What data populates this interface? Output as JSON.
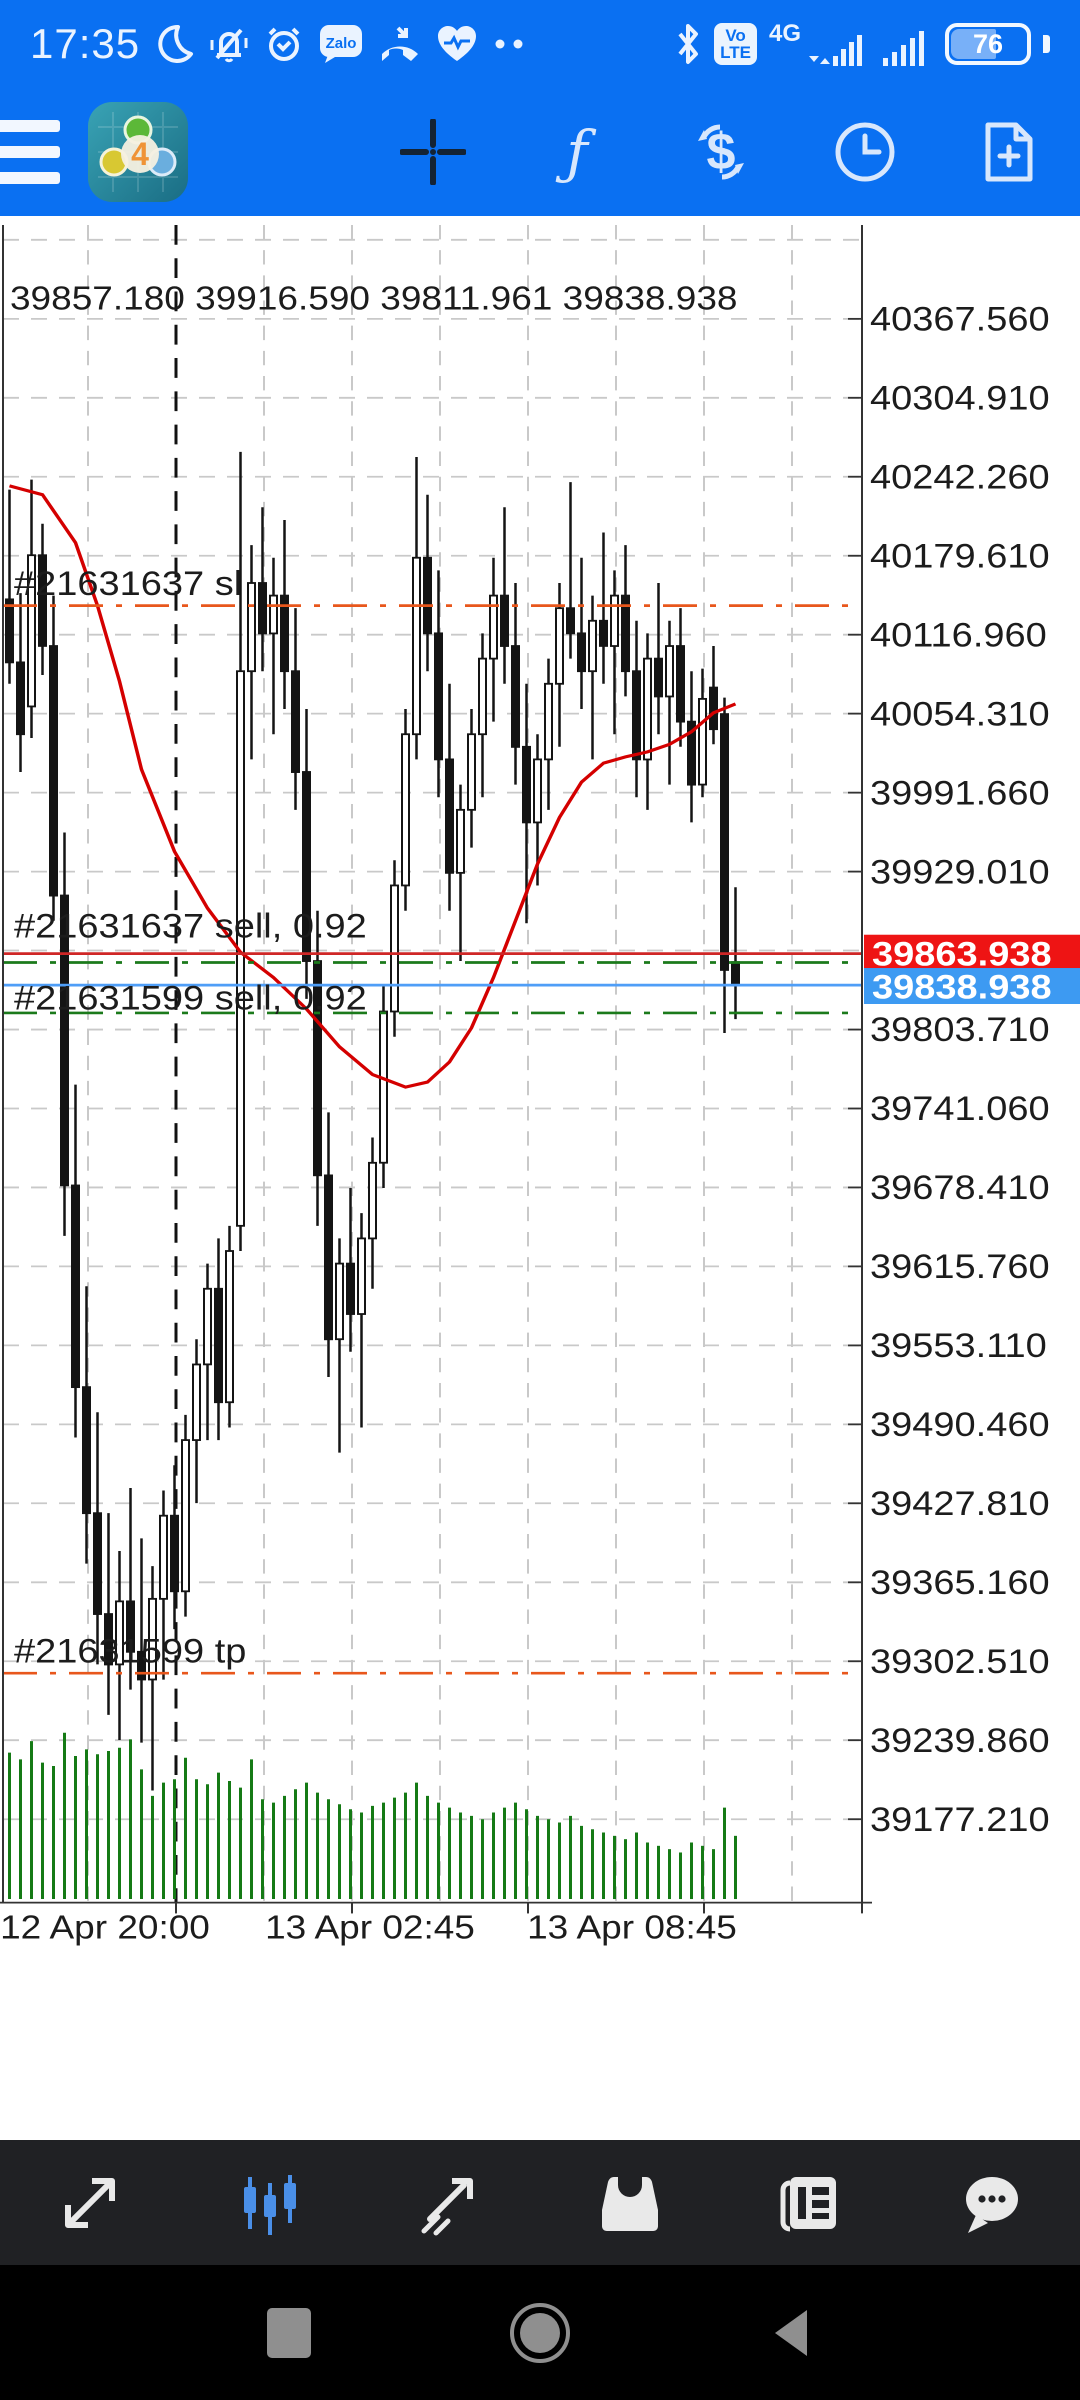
{
  "status_bar": {
    "time": "17:35",
    "zalo_label": "Zalo",
    "network_label": "4G",
    "volte_top": "Vo",
    "volte_bottom": "LTE",
    "battery_percent": "76",
    "icons_left": [
      "dnd-moon",
      "bell-muted",
      "alarm",
      "zalo",
      "missed-call",
      "health-heart",
      "more-dots"
    ],
    "icons_right": [
      "bluetooth",
      "volte",
      "4g-signal",
      "signal-sim2",
      "battery"
    ]
  },
  "app_bar": {
    "logo_badge": "4",
    "indicators_glyph": "ƒ",
    "icons": [
      "menu",
      "mt4-logo",
      "crosshair",
      "indicators",
      "trade-exchange",
      "history-clock",
      "new-order"
    ]
  },
  "chart": {
    "ohlc": {
      "open": "39857.180",
      "high": "39916.590",
      "low": "39811.961",
      "close": "39838.938"
    },
    "y_axis_ticks": [
      "40367.560",
      "40304.910",
      "40242.260",
      "40179.610",
      "40116.960",
      "40054.310",
      "39991.660",
      "39929.010",
      "39803.710",
      "39741.060",
      "39678.410",
      "39615.760",
      "39553.110",
      "39490.460",
      "39427.810",
      "39365.160",
      "39302.510",
      "39239.860",
      "39177.210"
    ],
    "ask_badge": {
      "value": "39863.938",
      "color": "#ee1414"
    },
    "bid_badge": {
      "value": "39838.938",
      "color": "#3d9af2"
    },
    "x_axis_labels": [
      "12 Apr 20:00",
      "13 Apr 02:45",
      "13 Apr 08:45"
    ],
    "annotations": {
      "sl": {
        "label": "#21631637 sl",
        "price": 40140,
        "color": "#e8571c",
        "dash": "dashdot"
      },
      "sell_1": {
        "label": "#21631637 sell, 0.92",
        "price": 39856.9,
        "color": "#1b7a1b",
        "dash": "dashdot"
      },
      "sell_2": {
        "label": "#21631599 sell, 0.92",
        "price": 39816.9,
        "color": "#1b7a1b",
        "dash": "dashdot"
      },
      "tp": {
        "label": "#21631599 tp",
        "price": 39293,
        "color": "#e8571c",
        "dash": "dashdot"
      }
    },
    "ask_line_price": 39863.938,
    "bid_line_price": 39838.938,
    "colors": {
      "grid": "#c9c9c9",
      "separator": "#111111",
      "bear": "#141414",
      "bull_fill": "#ffffff",
      "volume": "#157a15",
      "ma": "#d40000",
      "ask_line": "#cf2626",
      "bid_line": "#4f9ef7",
      "text": "#1c1c1c",
      "axis": "#555555"
    }
  },
  "chart_data": {
    "type": "candlestick",
    "ylim": [
      39111,
      40442
    ],
    "grid_prices": [
      40430.21,
      40367.56,
      40304.91,
      40242.26,
      40179.61,
      40116.96,
      40054.31,
      39991.66,
      39929.01,
      39866.36,
      39803.71,
      39741.06,
      39678.41,
      39615.76,
      39553.11,
      39490.46,
      39427.81,
      39365.16,
      39302.51,
      39239.86,
      39177.21
    ],
    "candles": [
      [
        40145,
        40232,
        40078,
        40095
      ],
      [
        40095,
        40150,
        40008,
        40038
      ],
      [
        40060,
        40240,
        40035,
        40180
      ],
      [
        40180,
        40205,
        40085,
        40108
      ],
      [
        40108,
        40148,
        39890,
        39910
      ],
      [
        39910,
        39960,
        39640,
        39680
      ],
      [
        39680,
        39760,
        39480,
        39520
      ],
      [
        39520,
        39600,
        39380,
        39420
      ],
      [
        39420,
        39500,
        39300,
        39340
      ],
      [
        39340,
        39420,
        39260,
        39300
      ],
      [
        39300,
        39390,
        39240,
        39350
      ],
      [
        39350,
        39440,
        39280,
        39310
      ],
      [
        39310,
        39400,
        39238,
        39288
      ],
      [
        39288,
        39378,
        39200,
        39352
      ],
      [
        39352,
        39438,
        39288,
        39418
      ],
      [
        39418,
        39458,
        39328,
        39358
      ],
      [
        39358,
        39498,
        39338,
        39478
      ],
      [
        39478,
        39558,
        39428,
        39538
      ],
      [
        39538,
        39618,
        39478,
        39598
      ],
      [
        39598,
        39638,
        39478,
        39508
      ],
      [
        39508,
        39648,
        39488,
        39628
      ],
      [
        39648,
        40262,
        39628,
        40088
      ],
      [
        40088,
        40188,
        40018,
        40158
      ],
      [
        40158,
        40218,
        40088,
        40118
      ],
      [
        40118,
        40178,
        40038,
        40148
      ],
      [
        40148,
        40208,
        40058,
        40088
      ],
      [
        40088,
        40138,
        39978,
        40008
      ],
      [
        40008,
        40058,
        39828,
        39858
      ],
      [
        39858,
        39898,
        39648,
        39688
      ],
      [
        39688,
        39738,
        39528,
        39558
      ],
      [
        39558,
        39638,
        39468,
        39618
      ],
      [
        39618,
        39678,
        39548,
        39578
      ],
      [
        39578,
        39658,
        39488,
        39638
      ],
      [
        39638,
        39718,
        39598,
        39698
      ],
      [
        39698,
        39838,
        39678,
        39818
      ],
      [
        39818,
        39938,
        39798,
        39918
      ],
      [
        39918,
        40058,
        39898,
        40038
      ],
      [
        40038,
        40258,
        40018,
        40178
      ],
      [
        40178,
        40228,
        40088,
        40118
      ],
      [
        40118,
        40168,
        39988,
        40018
      ],
      [
        40018,
        40078,
        39898,
        39928
      ],
      [
        39928,
        39998,
        39858,
        39978
      ],
      [
        39978,
        40058,
        39948,
        40038
      ],
      [
        40038,
        40118,
        39988,
        40098
      ],
      [
        40098,
        40178,
        40048,
        40148
      ],
      [
        40148,
        40218,
        40078,
        40108
      ],
      [
        40108,
        40158,
        39998,
        40028
      ],
      [
        40028,
        40078,
        39888,
        39968
      ],
      [
        39968,
        40038,
        39918,
        40018
      ],
      [
        40018,
        40098,
        39978,
        40078
      ],
      [
        40078,
        40158,
        40028,
        40138
      ],
      [
        40138,
        40238,
        40098,
        40118
      ],
      [
        40118,
        40178,
        40058,
        40088
      ],
      [
        40088,
        40148,
        40018,
        40128
      ],
      [
        40128,
        40198,
        40078,
        40108
      ],
      [
        40108,
        40168,
        40038,
        40148
      ],
      [
        40148,
        40188,
        40068,
        40088
      ],
      [
        40088,
        40128,
        39988,
        40018
      ],
      [
        40018,
        40118,
        39978,
        40098
      ],
      [
        40098,
        40158,
        40038,
        40068
      ],
      [
        40068,
        40128,
        39998,
        40108
      ],
      [
        40108,
        40138,
        40028,
        40048
      ],
      [
        40048,
        40088,
        39968,
        39998
      ],
      [
        39998,
        40090,
        39988,
        40066
      ],
      [
        40075,
        40108,
        40030,
        40042
      ],
      [
        40054,
        40067,
        39801,
        39851
      ],
      [
        39857.18,
        39916.59,
        39811.96,
        39838.94
      ]
    ],
    "volume": [
      88,
      84,
      95,
      82,
      80,
      100,
      86,
      90,
      87,
      89,
      91,
      96,
      78,
      62,
      70,
      72,
      85,
      72,
      69,
      76,
      71,
      67,
      84,
      60,
      58,
      62,
      66,
      70,
      64,
      60,
      57,
      54,
      52,
      56,
      58,
      61,
      64,
      70,
      62,
      58,
      55,
      52,
      50,
      48,
      52,
      55,
      58,
      54,
      50,
      48,
      46,
      50,
      44,
      42,
      40,
      38,
      36,
      40,
      34,
      32,
      30,
      28,
      34,
      32,
      30,
      55,
      38
    ],
    "ma_red": [
      [
        0,
        40235
      ],
      [
        3,
        40228
      ],
      [
        6,
        40190
      ],
      [
        8,
        40140
      ],
      [
        10,
        40080
      ],
      [
        12,
        40010
      ],
      [
        15,
        39945
      ],
      [
        18,
        39900
      ],
      [
        21,
        39865
      ],
      [
        24,
        39845
      ],
      [
        27,
        39820
      ],
      [
        30,
        39790
      ],
      [
        33,
        39768
      ],
      [
        36,
        39758
      ],
      [
        38,
        39762
      ],
      [
        40,
        39778
      ],
      [
        42,
        39805
      ],
      [
        44,
        39845
      ],
      [
        46,
        39890
      ],
      [
        48,
        39935
      ],
      [
        50,
        39972
      ],
      [
        52,
        40000
      ],
      [
        54,
        40015
      ],
      [
        56,
        40020
      ],
      [
        58,
        40024
      ],
      [
        60,
        40030
      ],
      [
        62,
        40040
      ],
      [
        64,
        40055
      ],
      [
        66,
        40062
      ]
    ],
    "x_tick_labels": [
      "12 Apr 20:00",
      "13 Apr 02:45",
      "13 Apr 08:45"
    ]
  },
  "bottom_nav": {
    "items": [
      {
        "name": "quotes",
        "active": false
      },
      {
        "name": "charts",
        "active": true
      },
      {
        "name": "trade",
        "active": false
      },
      {
        "name": "history",
        "active": false
      },
      {
        "name": "news",
        "active": false
      },
      {
        "name": "messages",
        "active": false
      }
    ],
    "active_color": "#4a8fe8",
    "idle_color": "#e9e9e9"
  },
  "android_nav": [
    "recents",
    "home",
    "back"
  ]
}
